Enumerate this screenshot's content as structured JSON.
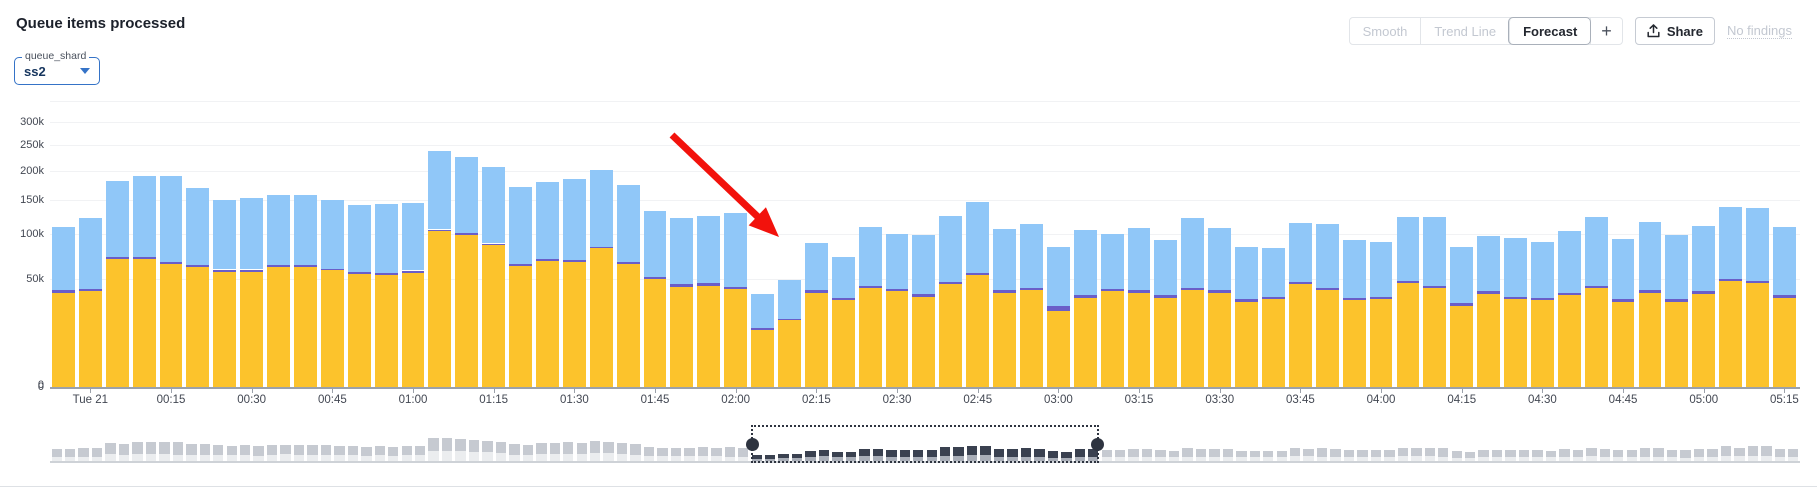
{
  "header": {
    "title": "Queue items processed"
  },
  "filter": {
    "label": "queue_shard",
    "value": "ss2"
  },
  "toolbar": {
    "smooth": "Smooth",
    "trend_line": "Trend Line",
    "forecast": "Forecast",
    "add": "+",
    "share": "Share",
    "no_findings": "No findings"
  },
  "colors": {
    "bar_bottom": "#fcc32c",
    "bar_middle": "#6a5ec8",
    "bar_top": "#90c7f8",
    "arrow": "#f2120c",
    "accent_blue": "#3573c7",
    "grid": "#f1f2f4",
    "axis": "#9ba1aa",
    "minimap_body": "#ebedef",
    "minimap_cap": "#c6cad1",
    "minimap_sel_body": "#a9aeb8",
    "minimap_sel_cap": "#3a4150"
  },
  "chart_data": {
    "type": "bar",
    "stacked": true,
    "y_scale": "sqrt",
    "title": "Queue items processed",
    "xlabel": "",
    "ylabel": "",
    "legend": "none",
    "ylim": [
      0,
      300000
    ],
    "y_gridlines": [
      {
        "v": 350,
        "label": ""
      },
      {
        "v": 300,
        "label": "300k"
      },
      {
        "v": 250,
        "label": "250k"
      },
      {
        "v": 200,
        "label": "200k"
      },
      {
        "v": 150,
        "label": "150k"
      },
      {
        "v": 100,
        "label": "100k"
      },
      {
        "v": 50,
        "label": "50k"
      },
      {
        "v": 0,
        "label": "0"
      }
    ],
    "x_tick_labels": [
      "Tue 21",
      "00:15",
      "00:30",
      "00:45",
      "01:00",
      "01:15",
      "01:30",
      "01:45",
      "02:00",
      "02:15",
      "02:30",
      "02:45",
      "03:00",
      "03:15",
      "03:30",
      "03:45",
      "04:00",
      "04:15",
      "04:30",
      "04:45",
      "05:00",
      "05:15"
    ],
    "x_tick_start_index": 1,
    "x_tick_every": 3,
    "x": [
      "23:55",
      "00:00",
      "00:05",
      "00:10",
      "00:15",
      "00:20",
      "00:25",
      "00:30",
      "00:35",
      "00:40",
      "00:45",
      "00:50",
      "00:55",
      "01:00",
      "01:05",
      "01:10",
      "01:15",
      "01:20",
      "01:25",
      "01:30",
      "01:35",
      "01:40",
      "01:45",
      "01:50",
      "01:55",
      "02:00",
      "02:05",
      "02:10",
      "02:15",
      "02:20",
      "02:25",
      "02:30",
      "02:35",
      "02:40",
      "02:45",
      "02:50",
      "02:55",
      "03:00",
      "03:05",
      "03:10",
      "03:15",
      "03:20",
      "03:25",
      "03:30",
      "03:35",
      "03:40",
      "03:45",
      "03:50",
      "03:55",
      "04:00",
      "04:05",
      "04:10",
      "04:15",
      "04:20",
      "04:25",
      "04:30",
      "04:35",
      "04:40",
      "04:45",
      "04:50",
      "04:55",
      "05:00",
      "05:05",
      "05:10",
      "05:15"
    ],
    "units": "k items",
    "series": [
      {
        "name": "bottom-yellow",
        "values_k": [
          38,
          39,
          70,
          70,
          65,
          62,
          57,
          57,
          62,
          62,
          58,
          55,
          54,
          56,
          104,
          99,
          86,
          63,
          68,
          67,
          82,
          65,
          50,
          43,
          44,
          41,
          14,
          19,
          38,
          32,
          42,
          39,
          35,
          45,
          54,
          38,
          40,
          25,
          34,
          39,
          38,
          34,
          40,
          38,
          31,
          33,
          45,
          40,
          32,
          33,
          46,
          42,
          28,
          37,
          33,
          32,
          36,
          42,
          31,
          38,
          31,
          37,
          48,
          46,
          34
        ]
      },
      {
        "name": "middle-purple",
        "values_k": [
          2,
          2,
          2,
          2,
          2,
          2,
          2,
          2,
          2,
          2,
          2,
          2,
          2,
          2,
          2,
          2,
          2,
          2,
          2,
          2,
          2,
          2,
          2,
          2,
          2,
          2,
          1,
          1,
          2,
          2,
          2,
          2,
          2,
          2,
          2,
          2,
          2,
          3,
          2,
          2,
          2,
          2,
          2,
          2,
          2,
          2,
          2,
          2,
          2,
          2,
          2,
          2,
          2,
          2,
          2,
          2,
          2,
          2,
          2,
          2,
          2,
          2,
          2,
          2,
          2
        ]
      },
      {
        "name": "top-blue",
        "totals_k": [
          109,
          122,
          182,
          190,
          190,
          170,
          150,
          152,
          157,
          157,
          150,
          142,
          143,
          145,
          237,
          227,
          206,
          171,
          180,
          184,
          202,
          174,
          133,
          122,
          125,
          129,
          37,
          49,
          89,
          72,
          109,
          100,
          99,
          125,
          146,
          107,
          113,
          84,
          105,
          100,
          108,
          92,
          122,
          108,
          84,
          82,
          115,
          113,
          92,
          90,
          124,
          123,
          84,
          98,
          95,
          90,
          104,
          123,
          93,
          117,
          99,
          111,
          138,
          137,
          109
        ]
      }
    ],
    "annotation_arrow": {
      "tail": [
        672,
        135
      ],
      "tip": [
        779,
        237
      ],
      "color": "#f2120c"
    },
    "minimap": {
      "bars_per_point": 2,
      "selection_start_frac": 0.4005,
      "selection_end_frac": 0.5995
    }
  }
}
